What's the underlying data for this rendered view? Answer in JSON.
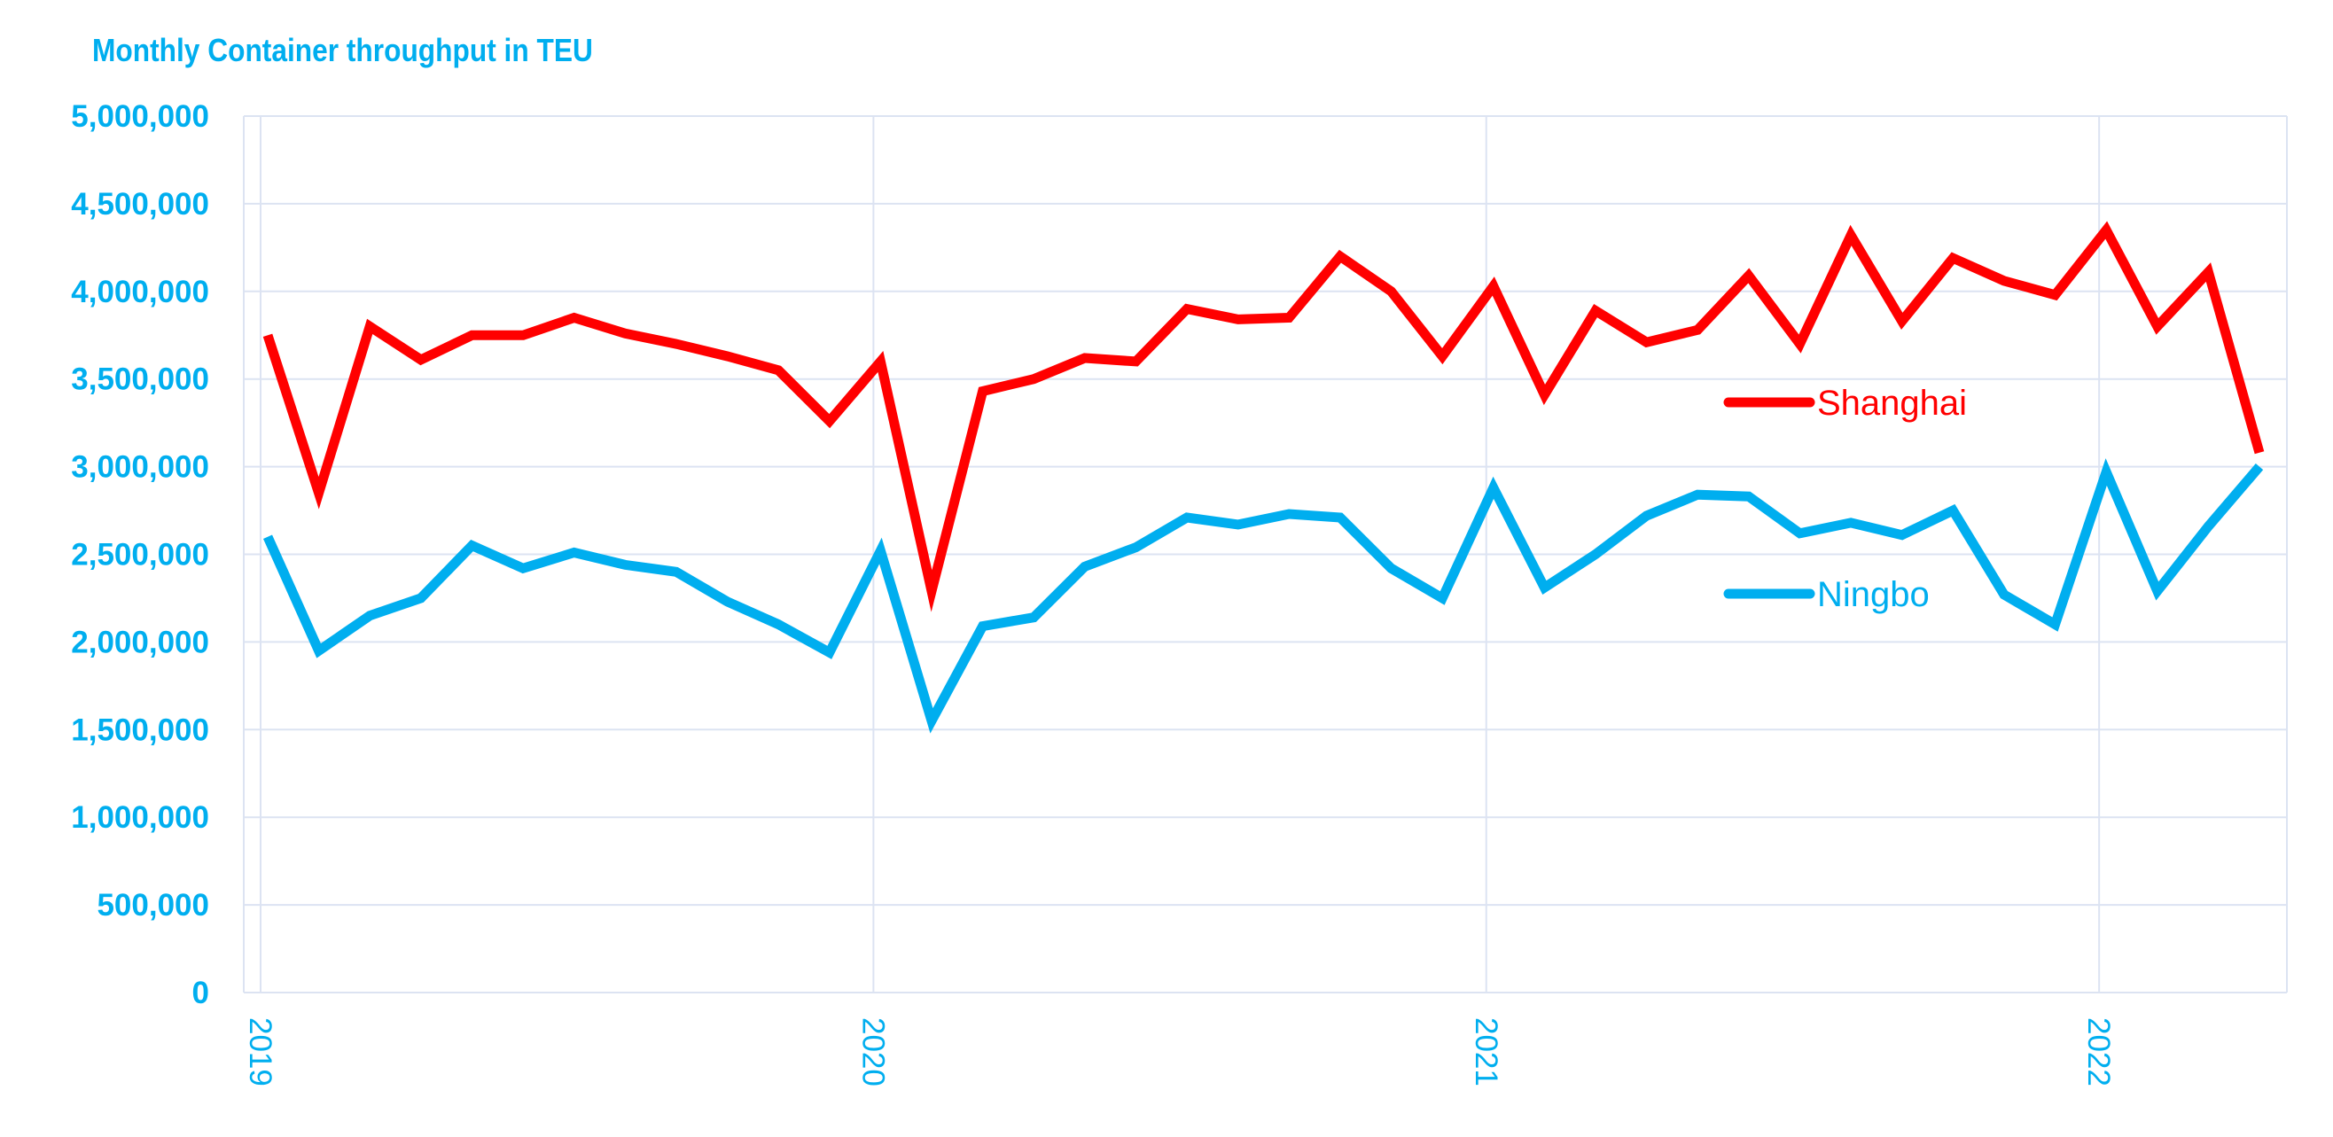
{
  "chart_data": {
    "type": "line",
    "title": "Monthly Container throughput in TEU",
    "xlabel": "",
    "ylabel": "",
    "ylim": [
      0,
      5000000
    ],
    "yticks": [
      "0",
      "500,000",
      "1,000,000",
      "1,500,000",
      "2,000,000",
      "2,500,000",
      "3,000,000",
      "3,500,000",
      "4,000,000",
      "4,500,000",
      "5,000,000"
    ],
    "xticks": [
      "2019",
      "2020",
      "2021",
      "2022"
    ],
    "x": [
      "2019-01",
      "2019-02",
      "2019-03",
      "2019-04",
      "2019-05",
      "2019-06",
      "2019-07",
      "2019-08",
      "2019-09",
      "2019-10",
      "2019-11",
      "2019-12",
      "2020-01",
      "2020-02",
      "2020-03",
      "2020-04",
      "2020-05",
      "2020-06",
      "2020-07",
      "2020-08",
      "2020-09",
      "2020-10",
      "2020-11",
      "2020-12",
      "2021-01",
      "2021-02",
      "2021-03",
      "2021-04",
      "2021-05",
      "2021-06",
      "2021-07",
      "2021-08",
      "2021-09",
      "2021-10",
      "2021-11",
      "2021-12",
      "2022-01",
      "2022-02",
      "2022-03",
      "2022-04"
    ],
    "series": [
      {
        "name": "Shanghai",
        "color": "#FF0000",
        "values": [
          3750000,
          2850000,
          3800000,
          3610000,
          3750000,
          3750000,
          3850000,
          3760000,
          3700000,
          3630000,
          3550000,
          3260000,
          3600000,
          2290000,
          3430000,
          3500000,
          3620000,
          3600000,
          3900000,
          3840000,
          3850000,
          4200000,
          4000000,
          3630000,
          4030000,
          3410000,
          3890000,
          3710000,
          3780000,
          4090000,
          3700000,
          4320000,
          3830000,
          4190000,
          4060000,
          3980000,
          4350000,
          3800000,
          4110000,
          3080000
        ]
      },
      {
        "name": "Ningbo",
        "color": "#00AEEF",
        "values": [
          2600000,
          1950000,
          2150000,
          2250000,
          2550000,
          2420000,
          2510000,
          2440000,
          2400000,
          2230000,
          2100000,
          1940000,
          2520000,
          1550000,
          2090000,
          2140000,
          2430000,
          2540000,
          2710000,
          2670000,
          2730000,
          2710000,
          2420000,
          2250000,
          2880000,
          2310000,
          2500000,
          2720000,
          2840000,
          2830000,
          2620000,
          2680000,
          2610000,
          2750000,
          2270000,
          2100000,
          2970000,
          2290000,
          2660000,
          3000000
        ]
      }
    ],
    "legend_position": "right-center",
    "grid": true,
    "axis_color": "#00AEEF",
    "grid_color": "#DCE3F2"
  }
}
